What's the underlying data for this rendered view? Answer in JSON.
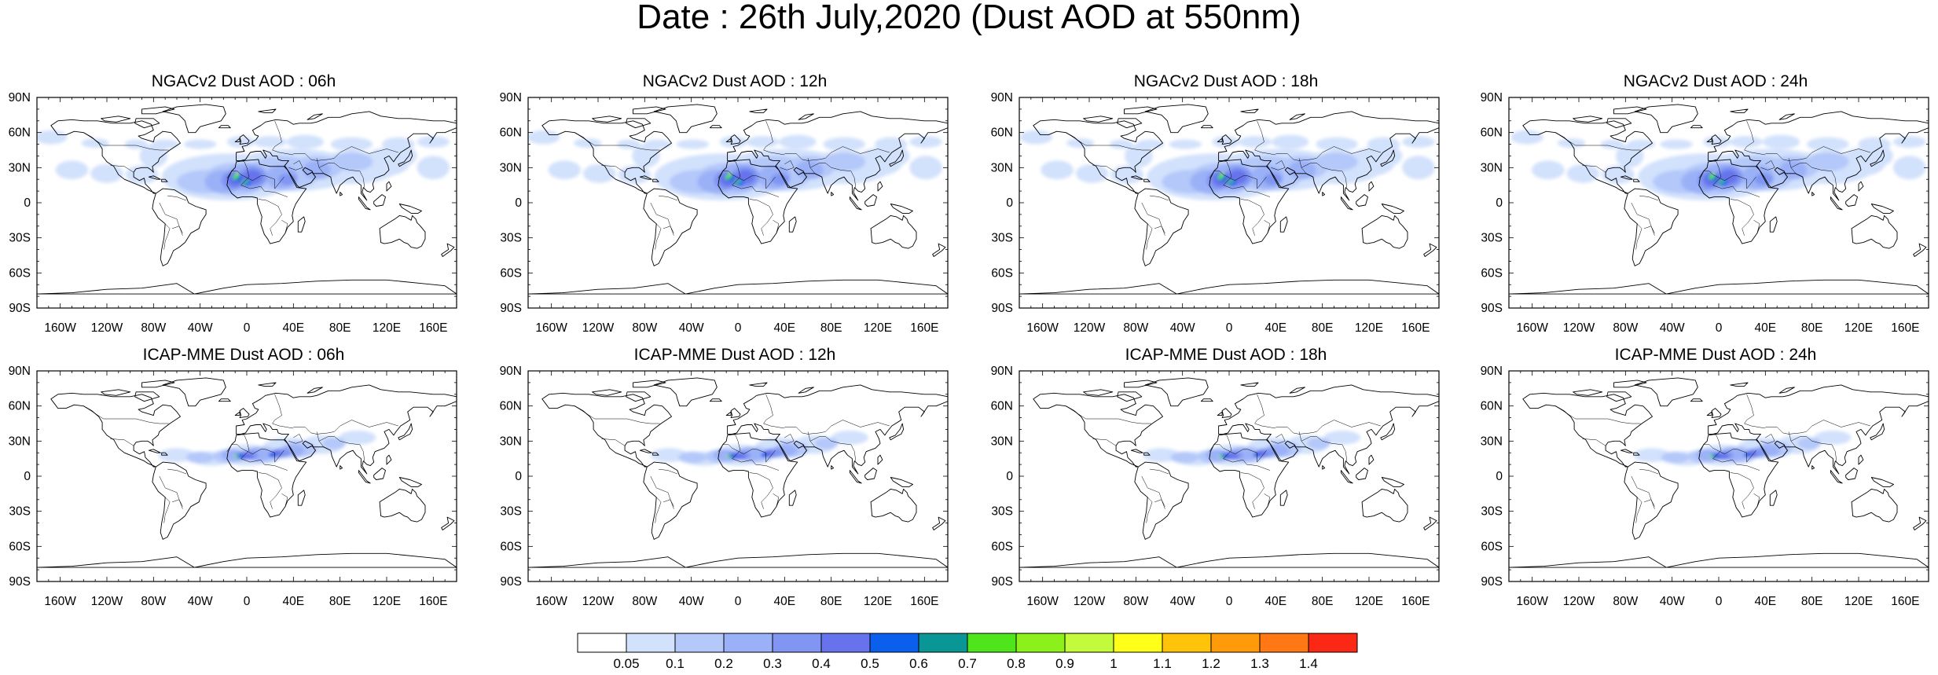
{
  "title": "Date : 26th July,2020 (Dust AOD at 550nm)",
  "panels": [
    {
      "title": "NGACv2 Dust AOD : 06h",
      "model": "ngac",
      "hour": 6
    },
    {
      "title": "NGACv2 Dust AOD : 12h",
      "model": "ngac",
      "hour": 12
    },
    {
      "title": "NGACv2 Dust AOD : 18h",
      "model": "ngac",
      "hour": 18
    },
    {
      "title": "NGACv2 Dust AOD : 24h",
      "model": "ngac",
      "hour": 24
    },
    {
      "title": "ICAP-MME Dust AOD : 06h",
      "model": "icap",
      "hour": 6
    },
    {
      "title": "ICAP-MME Dust AOD : 12h",
      "model": "icap",
      "hour": 12
    },
    {
      "title": "ICAP-MME Dust AOD : 18h",
      "model": "icap",
      "hour": 18
    },
    {
      "title": "ICAP-MME Dust AOD : 24h",
      "model": "icap",
      "hour": 24
    }
  ],
  "axes": {
    "lat_labels": [
      "90N",
      "60N",
      "30N",
      "0",
      "30S",
      "60S",
      "90S"
    ],
    "lon_labels": [
      "160W",
      "120W",
      "80W",
      "40W",
      "0",
      "40E",
      "80E",
      "120E",
      "160E"
    ]
  },
  "colorbar": {
    "labels": [
      "0.05",
      "0.1",
      "0.2",
      "0.3",
      "0.4",
      "0.5",
      "0.6",
      "0.7",
      "0.8",
      "0.9",
      "1",
      "1.1",
      "1.2",
      "1.3",
      "1.4"
    ],
    "colors": [
      "#ffffff",
      "#d2e1fc",
      "#b4c8fa",
      "#9bb1f7",
      "#8096f2",
      "#6673ec",
      "#0a5fec",
      "#0b9696",
      "#4ee61a",
      "#8cf01a",
      "#c3fa3c",
      "#ffff1a",
      "#ffc30a",
      "#ff9b0a",
      "#ff7814",
      "#fa2814"
    ]
  }
}
